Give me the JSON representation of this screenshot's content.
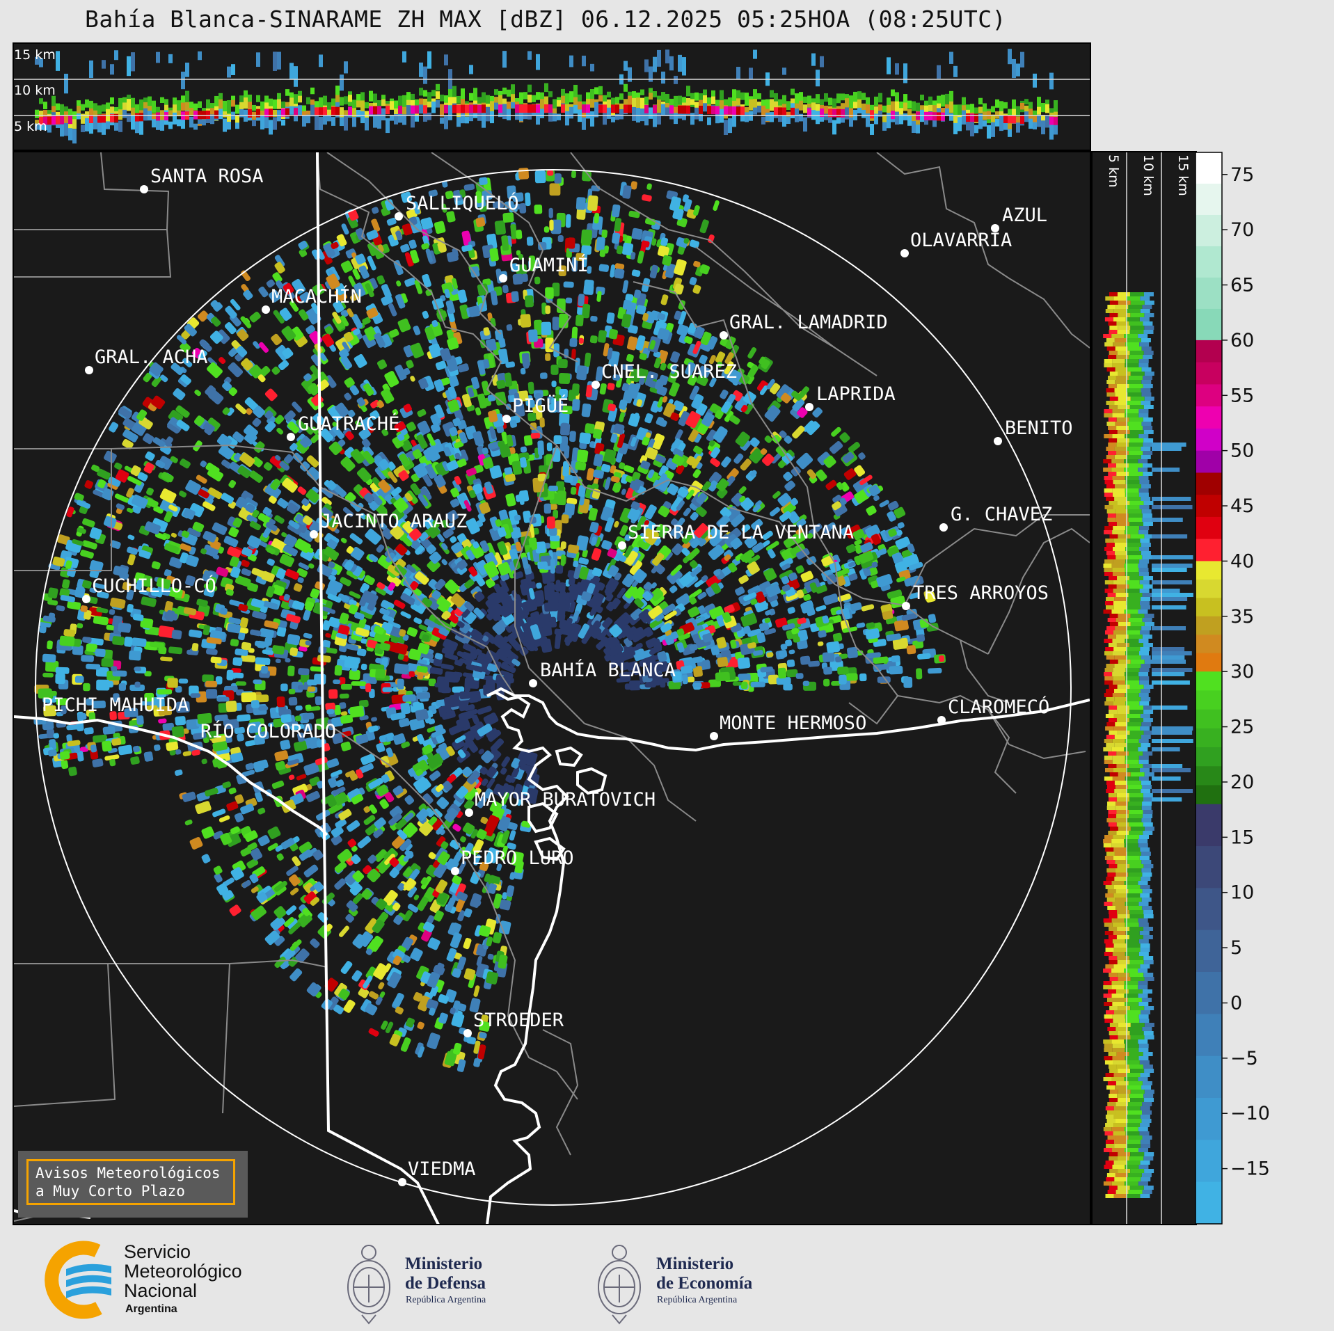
{
  "title": "Bahía Blanca-SINARAME ZH MAX [dBZ] 06.12.2025 05:25HOA (08:25UTC)",
  "top_panel": {
    "height_labels": [
      "15 km",
      "10 km",
      "5 km"
    ]
  },
  "right_panel": {
    "height_labels": [
      "5 km",
      "10 km",
      "15 km"
    ]
  },
  "colorbar": {
    "ticks": [
      "75",
      "70",
      "65",
      "60",
      "55",
      "50",
      "45",
      "40",
      "35",
      "30",
      "25",
      "20",
      "15",
      "10",
      "5",
      "0",
      "−5",
      "−10",
      "−15"
    ],
    "bands": [
      {
        "from": 60,
        "to": 77,
        "colors": [
          "#ffffff",
          "#e6f6ee",
          "#ccefdf",
          "#b0e8d0",
          "#9ce0c4",
          "#88d9b8"
        ]
      },
      {
        "from": 48,
        "to": 60,
        "colors": [
          "#b3004f",
          "#c8005f",
          "#dd0080",
          "#ee00b0",
          "#d000c8",
          "#a000a8"
        ]
      },
      {
        "from": 40,
        "to": 48,
        "colors": [
          "#a00000",
          "#c00000",
          "#e00010",
          "#ff2030"
        ]
      },
      {
        "from": 30,
        "to": 40,
        "colors": [
          "#e8e830",
          "#d8d830",
          "#c8c020",
          "#c0a020",
          "#d08a20",
          "#e07a10"
        ]
      },
      {
        "from": 18,
        "to": 30,
        "colors": [
          "#50e020",
          "#48d020",
          "#40c020",
          "#38b020",
          "#30a020",
          "#288818",
          "#207010"
        ]
      },
      {
        "from": -20,
        "to": 18,
        "colors": [
          "#3a3a6a",
          "#3c4878",
          "#3e5688",
          "#3f6498",
          "#3f72a8",
          "#3f80b8",
          "#3f8ec6",
          "#3f9ad2",
          "#3fa6dc",
          "#40b2e4"
        ]
      }
    ]
  },
  "cities": [
    {
      "name": "SANTA ROSA"
    },
    {
      "name": "SALLIQUELÓ"
    },
    {
      "name": "AZUL"
    },
    {
      "name": "OLAVARRÍA"
    },
    {
      "name": "GUAMINÍ"
    },
    {
      "name": "MACACHÍN"
    },
    {
      "name": "GRAL. LAMADRID"
    },
    {
      "name": "GRAL. ACHA"
    },
    {
      "name": "CNEL. SUAREZ"
    },
    {
      "name": "LAPRIDA"
    },
    {
      "name": "PIGÜÉ"
    },
    {
      "name": "GUATRACHÉ"
    },
    {
      "name": "BENITO"
    },
    {
      "name": "G. CHAVEZ"
    },
    {
      "name": "JACINTO ARAUZ"
    },
    {
      "name": "SIERRA DE LA VENTANA"
    },
    {
      "name": "CUCHILLO-CÓ"
    },
    {
      "name": "TRES ARROYOS"
    },
    {
      "name": "BAHÍA BLANCA"
    },
    {
      "name": "PICHI MAHUIDA"
    },
    {
      "name": "CLAROMECÓ"
    },
    {
      "name": "MONTE HERMOSO"
    },
    {
      "name": "RÍO COLORADO"
    },
    {
      "name": "MAYOR BURATOVICH"
    },
    {
      "name": "PEDRO LURO"
    },
    {
      "name": "STROEDER"
    },
    {
      "name": "VIEDMA"
    }
  ],
  "notice": {
    "line1": "Avisos Meteorológicos",
    "line2": "a Muy Corto Plazo"
  },
  "logos": {
    "smn": {
      "line1": "Servicio",
      "line2": "Meteorológico",
      "line3": "Nacional",
      "line4": "Argentina"
    },
    "defensa": {
      "line1": "Ministerio",
      "line2": "de Defensa",
      "line3": "República Argentina"
    },
    "economia": {
      "line1": "Ministerio",
      "line2": "de Economía",
      "line3": "República Argentina"
    }
  },
  "colors": {
    "panel_bg": "#1a1a1a",
    "figure_bg": "#e6e6e6",
    "notice_border": "#f5a300",
    "smn_blue": "#2aa0dc",
    "smn_orange": "#f5a300",
    "ministry_navy": "#1f2a50"
  }
}
